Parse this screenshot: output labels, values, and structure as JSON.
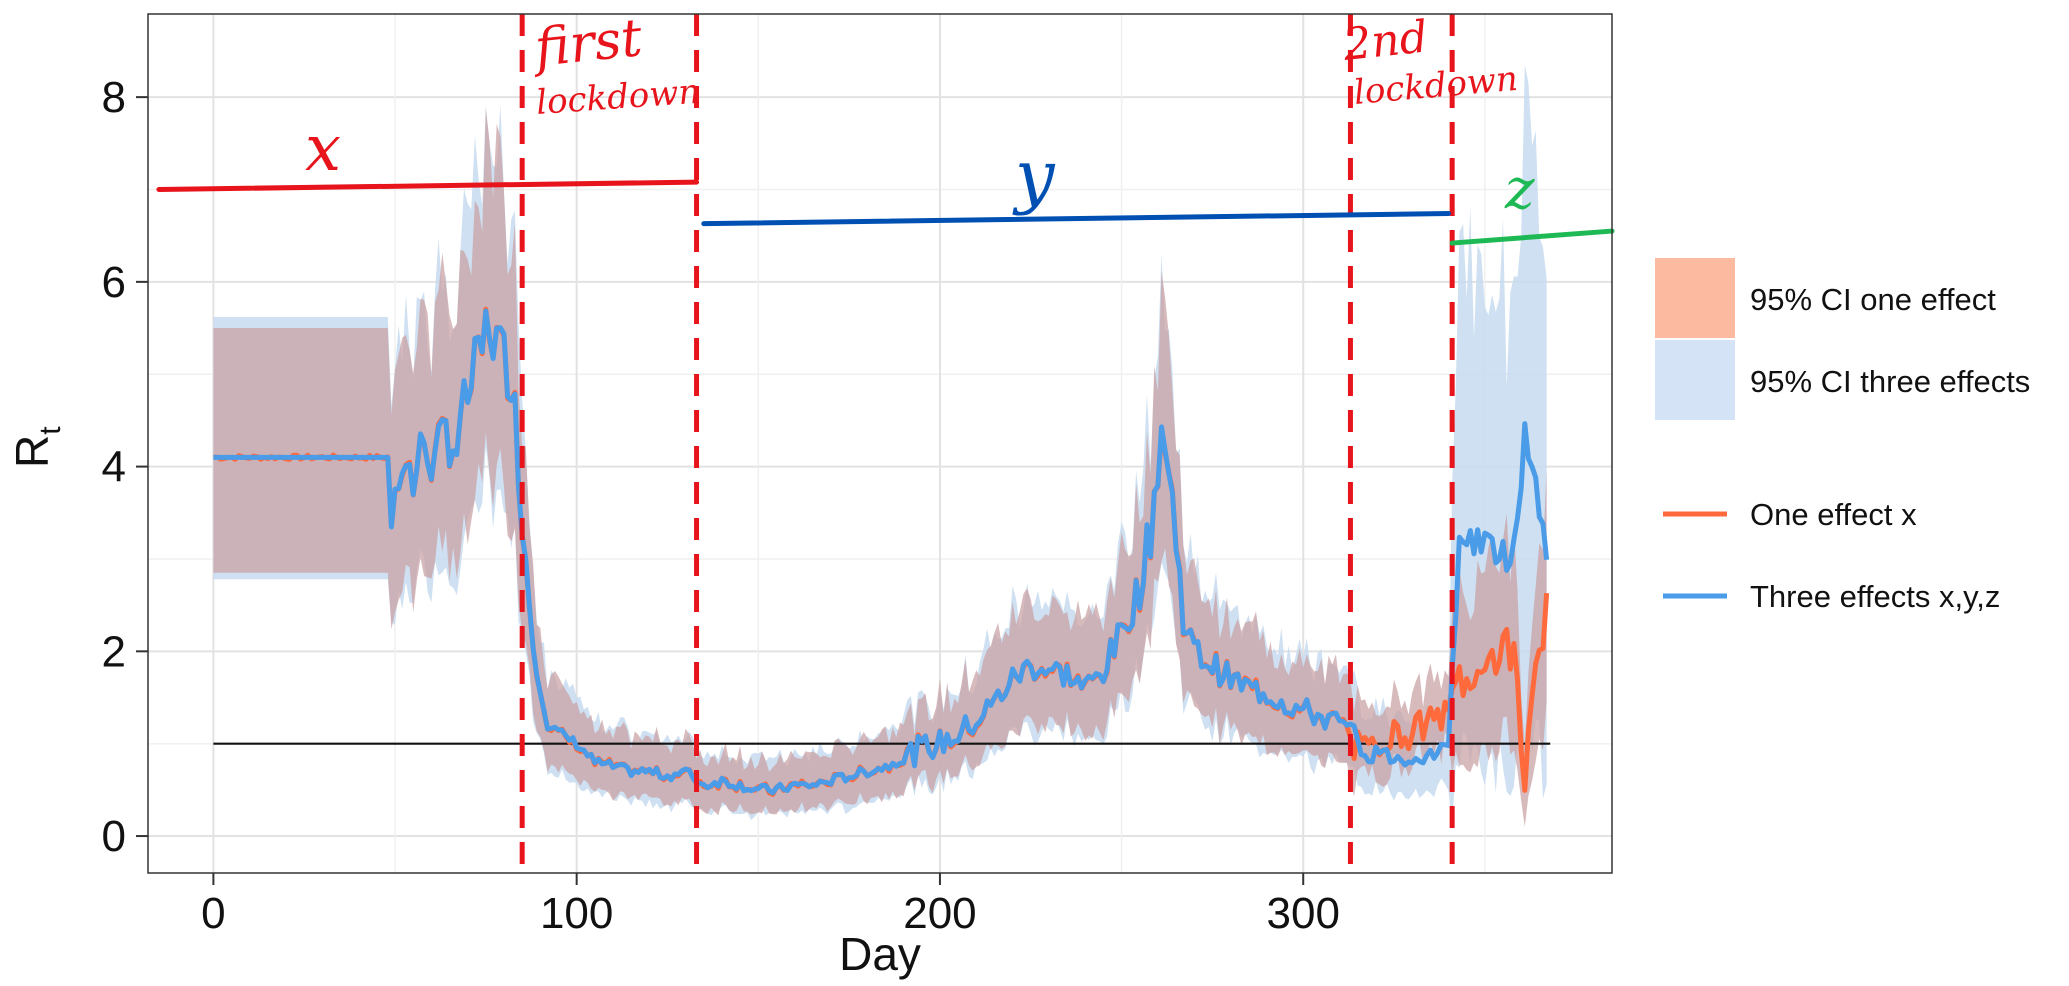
{
  "chart_data": {
    "type": "line",
    "xlabel": "Day",
    "ylabel": "R",
    "ylabel_sub": "t",
    "xlim": [
      -18,
      385
    ],
    "ylim": [
      -0.4,
      8.9
    ],
    "x_ticks": [
      0,
      100,
      200,
      300
    ],
    "x_tick_labels": [
      "0",
      "100",
      "200",
      "300"
    ],
    "y_ticks": [
      0,
      2,
      4,
      6,
      8
    ],
    "y_tick_labels": [
      "0",
      "2",
      "4",
      "6",
      "8"
    ],
    "grid": true,
    "reference_line": {
      "y": 1,
      "x_from": 0,
      "x_to": 368
    },
    "knots": [
      [
        0,
        4.1
      ],
      [
        48,
        4.1
      ],
      [
        49,
        3.4
      ],
      [
        52,
        4.2
      ],
      [
        55,
        3.8
      ],
      [
        58,
        4.3
      ],
      [
        61,
        4.0
      ],
      [
        64,
        4.4
      ],
      [
        67,
        4.2
      ],
      [
        70,
        4.8
      ],
      [
        73,
        5.1
      ],
      [
        76,
        5.6
      ],
      [
        79,
        5.2
      ],
      [
        82,
        5.1
      ],
      [
        84,
        4.0
      ],
      [
        86,
        3.0
      ],
      [
        88,
        2.1
      ],
      [
        90,
        1.6
      ],
      [
        92,
        1.2
      ],
      [
        96,
        1.1
      ],
      [
        100,
        1.0
      ],
      [
        105,
        0.8
      ],
      [
        110,
        0.75
      ],
      [
        115,
        0.7
      ],
      [
        120,
        0.7
      ],
      [
        125,
        0.65
      ],
      [
        130,
        0.7
      ],
      [
        135,
        0.55
      ],
      [
        140,
        0.6
      ],
      [
        145,
        0.55
      ],
      [
        150,
        0.5
      ],
      [
        155,
        0.5
      ],
      [
        160,
        0.55
      ],
      [
        165,
        0.55
      ],
      [
        170,
        0.6
      ],
      [
        175,
        0.65
      ],
      [
        180,
        0.7
      ],
      [
        185,
        0.75
      ],
      [
        190,
        0.85
      ],
      [
        195,
        0.95
      ],
      [
        200,
        1.0
      ],
      [
        205,
        1.1
      ],
      [
        210,
        1.25
      ],
      [
        215,
        1.45
      ],
      [
        220,
        1.7
      ],
      [
        225,
        1.85
      ],
      [
        230,
        1.8
      ],
      [
        235,
        1.75
      ],
      [
        240,
        1.6
      ],
      [
        245,
        1.8
      ],
      [
        250,
        2.2
      ],
      [
        255,
        2.7
      ],
      [
        258,
        3.3
      ],
      [
        261,
        4.45
      ],
      [
        264,
        3.6
      ],
      [
        267,
        2.4
      ],
      [
        270,
        2.0
      ],
      [
        275,
        1.85
      ],
      [
        280,
        1.7
      ],
      [
        285,
        1.6
      ],
      [
        290,
        1.55
      ],
      [
        295,
        1.45
      ],
      [
        300,
        1.35
      ],
      [
        305,
        1.3
      ],
      [
        310,
        1.2
      ],
      [
        313,
        1.1
      ],
      [
        316,
        0.95
      ],
      [
        320,
        0.9
      ],
      [
        325,
        0.85
      ],
      [
        330,
        0.85
      ],
      [
        335,
        0.9
      ],
      [
        340,
        0.95
      ],
      [
        343,
        3.3
      ],
      [
        346,
        3.2
      ],
      [
        350,
        3.2
      ],
      [
        354,
        3.0
      ],
      [
        358,
        3.1
      ],
      [
        361,
        4.4
      ],
      [
        364,
        3.8
      ],
      [
        367,
        3.1
      ]
    ],
    "one_effect_after_340": [
      [
        340,
        1.3
      ],
      [
        343,
        1.8
      ],
      [
        346,
        1.5
      ],
      [
        350,
        2.0
      ],
      [
        354,
        1.9
      ],
      [
        358,
        2.1
      ],
      [
        361,
        0.5
      ],
      [
        364,
        2.0
      ],
      [
        367,
        2.4
      ]
    ],
    "one_effect_310_340": [
      [
        313,
        1.0
      ],
      [
        318,
        0.9
      ],
      [
        323,
        1.1
      ],
      [
        328,
        1.1
      ],
      [
        333,
        1.2
      ],
      [
        338,
        1.3
      ]
    ],
    "series": [
      {
        "name": "One effect x",
        "role": "line",
        "color": "#FF6A3D"
      },
      {
        "name": "Three effects x,y,z",
        "role": "line",
        "color": "#4A9BE8"
      },
      {
        "name": "95% CI one effect",
        "role": "band",
        "color": "#FCBBA1"
      },
      {
        "name": "95% CI three effects",
        "role": "band",
        "color": "#C6DBEF"
      }
    ],
    "legend_placement": "right",
    "legend": {
      "band_labels": [
        "95% CI one effect",
        "95% CI three effects"
      ],
      "line_labels": [
        "One effect x",
        "Three effects x,y,z"
      ]
    },
    "annotations": {
      "vlines": [
        85,
        133,
        313,
        341
      ],
      "vline_color": "#E8141C",
      "period_labels": [
        {
          "text": "first",
          "color": "#E8141C"
        },
        {
          "text": "lockdown",
          "color": "#E8141C"
        },
        {
          "text": "2nd",
          "color": "#E8141C"
        },
        {
          "text": "lockdown",
          "color": "#E8141C"
        },
        {
          "text": "x",
          "color": "#E8141C"
        },
        {
          "text": "y",
          "color": "#0050B3"
        },
        {
          "text": "z",
          "color": "#1DB954"
        }
      ],
      "segments": [
        {
          "x_from": -15,
          "x_to": 133,
          "y_from": 7.0,
          "y_to": 7.08,
          "color": "#E8141C"
        },
        {
          "x_from": 135,
          "x_to": 340,
          "y_from": 6.63,
          "y_to": 6.74,
          "color": "#0050B3"
        },
        {
          "x_from": 341,
          "x_to": 385,
          "y_from": 6.42,
          "y_to": 6.55,
          "color": "#1DB954"
        }
      ]
    }
  }
}
